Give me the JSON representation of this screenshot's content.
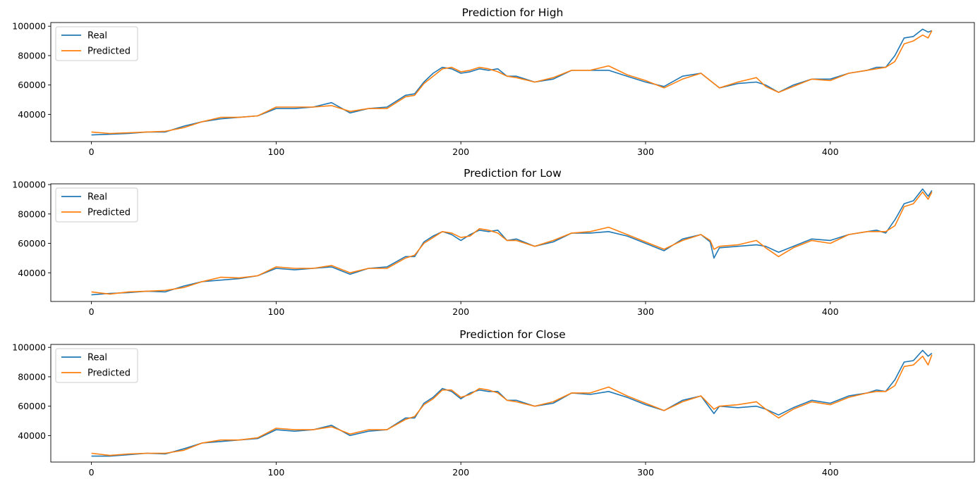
{
  "chart_data": [
    {
      "type": "line",
      "title": "Prediction for High",
      "xlabel": "",
      "ylabel": "",
      "xlim": [
        -22,
        478
      ],
      "ylim": [
        21500,
        102500
      ],
      "xticks": [
        0,
        100,
        200,
        300,
        400
      ],
      "xtick_labels": [
        "0",
        "100",
        "200",
        "300",
        "400"
      ],
      "yticks": [
        40000,
        60000,
        80000,
        100000
      ],
      "ytick_labels": [
        "40000",
        "60000",
        "80000",
        "100000"
      ],
      "legend": {
        "position": "upper-left",
        "entries": [
          "Real",
          "Predicted"
        ]
      },
      "grid": false,
      "series": [
        {
          "name": "Real",
          "color": "#1f77b4",
          "x": [
            0,
            10,
            20,
            30,
            40,
            50,
            60,
            70,
            80,
            90,
            100,
            110,
            120,
            130,
            140,
            150,
            160,
            170,
            175,
            180,
            185,
            190,
            195,
            200,
            205,
            210,
            215,
            220,
            225,
            230,
            240,
            250,
            260,
            270,
            280,
            290,
            300,
            310,
            320,
            330,
            340,
            350,
            360,
            365,
            372,
            380,
            390,
            400,
            410,
            420,
            425,
            430,
            435,
            440,
            445,
            450,
            453,
            455
          ],
          "y": [
            26000,
            26500,
            27000,
            28000,
            28000,
            32000,
            35000,
            37000,
            38000,
            39000,
            44000,
            44000,
            45000,
            48000,
            41000,
            44000,
            45000,
            53000,
            54000,
            62000,
            68000,
            72000,
            71000,
            68000,
            69000,
            71000,
            70000,
            71000,
            66000,
            66000,
            62000,
            64000,
            70000,
            70000,
            70000,
            66000,
            62000,
            59000,
            66000,
            68000,
            58000,
            61000,
            62000,
            60000,
            55000,
            60000,
            64000,
            64000,
            68000,
            70000,
            72000,
            72000,
            80000,
            92000,
            93000,
            98000,
            96000,
            97000
          ]
        },
        {
          "name": "Predicted",
          "color": "#ff7f0e",
          "x": [
            0,
            10,
            20,
            30,
            40,
            50,
            60,
            70,
            80,
            90,
            100,
            110,
            120,
            130,
            140,
            150,
            160,
            170,
            175,
            180,
            185,
            190,
            195,
            200,
            205,
            210,
            215,
            220,
            225,
            230,
            240,
            250,
            260,
            270,
            280,
            290,
            300,
            310,
            320,
            330,
            340,
            350,
            360,
            365,
            372,
            380,
            390,
            400,
            410,
            420,
            425,
            430,
            435,
            440,
            445,
            450,
            453,
            455
          ],
          "y": [
            28000,
            27000,
            27500,
            28000,
            28500,
            31000,
            35000,
            38000,
            38000,
            39000,
            45000,
            45000,
            45000,
            46000,
            42000,
            44000,
            44000,
            52000,
            53000,
            61000,
            66000,
            71000,
            72000,
            69000,
            70000,
            72000,
            71000,
            69000,
            66000,
            65000,
            62000,
            65000,
            70000,
            70000,
            73000,
            67000,
            63000,
            58000,
            64000,
            68000,
            58000,
            62000,
            65000,
            59000,
            55000,
            59000,
            64000,
            63000,
            68000,
            70000,
            71000,
            72000,
            76000,
            88000,
            90000,
            94000,
            92000,
            97000
          ]
        }
      ]
    },
    {
      "type": "line",
      "title": "Prediction for Low",
      "xlabel": "",
      "ylabel": "",
      "xlim": [
        -22,
        478
      ],
      "ylim": [
        20500,
        100500
      ],
      "xticks": [
        0,
        100,
        200,
        300,
        400
      ],
      "xtick_labels": [
        "0",
        "100",
        "200",
        "300",
        "400"
      ],
      "yticks": [
        40000,
        60000,
        80000,
        100000
      ],
      "ytick_labels": [
        "40000",
        "60000",
        "80000",
        "100000"
      ],
      "legend": {
        "position": "upper-left",
        "entries": [
          "Real",
          "Predicted"
        ]
      },
      "grid": false,
      "series": [
        {
          "name": "Real",
          "color": "#1f77b4",
          "x": [
            0,
            10,
            20,
            30,
            40,
            50,
            60,
            70,
            80,
            90,
            100,
            110,
            120,
            130,
            140,
            150,
            160,
            170,
            175,
            180,
            185,
            190,
            195,
            200,
            205,
            210,
            215,
            220,
            225,
            230,
            240,
            250,
            260,
            270,
            280,
            290,
            300,
            310,
            320,
            330,
            335,
            337,
            340,
            350,
            360,
            365,
            372,
            380,
            390,
            400,
            410,
            420,
            425,
            430,
            435,
            440,
            445,
            450,
            453,
            455
          ],
          "y": [
            25000,
            26000,
            26500,
            27500,
            27000,
            31000,
            34000,
            35000,
            36000,
            38000,
            43000,
            42000,
            43000,
            44000,
            39000,
            43000,
            44000,
            51000,
            51000,
            61000,
            65000,
            68000,
            66000,
            62000,
            66000,
            69000,
            68000,
            69000,
            62000,
            63000,
            58000,
            61000,
            67000,
            67000,
            68000,
            65000,
            60000,
            55000,
            63000,
            66000,
            61000,
            50000,
            57000,
            58000,
            59000,
            58000,
            54000,
            58000,
            63000,
            62000,
            66000,
            68000,
            69000,
            67000,
            76000,
            87000,
            89000,
            97000,
            92000,
            96000
          ]
        },
        {
          "name": "Predicted",
          "color": "#ff7f0e",
          "x": [
            0,
            10,
            20,
            30,
            40,
            50,
            60,
            70,
            80,
            90,
            100,
            110,
            120,
            130,
            140,
            150,
            160,
            170,
            175,
            180,
            185,
            190,
            195,
            200,
            205,
            210,
            215,
            220,
            225,
            230,
            240,
            250,
            260,
            270,
            280,
            290,
            300,
            310,
            320,
            330,
            335,
            337,
            340,
            350,
            360,
            365,
            372,
            380,
            390,
            400,
            410,
            420,
            425,
            430,
            435,
            440,
            445,
            450,
            453,
            455
          ],
          "y": [
            27000,
            25500,
            27000,
            27500,
            28000,
            30000,
            34000,
            37000,
            36500,
            38000,
            44000,
            43000,
            43000,
            45000,
            40000,
            43000,
            43000,
            50000,
            52000,
            60000,
            64000,
            68000,
            67000,
            64000,
            65000,
            70000,
            69000,
            67000,
            62000,
            62000,
            58000,
            62000,
            67000,
            68000,
            71000,
            66000,
            61000,
            56000,
            62000,
            66000,
            62000,
            56000,
            58000,
            59000,
            62000,
            57000,
            51000,
            57000,
            62000,
            60000,
            66000,
            68000,
            68000,
            68000,
            72000,
            85000,
            87000,
            95000,
            90000,
            95000
          ]
        }
      ]
    },
    {
      "type": "line",
      "title": "Prediction for Close",
      "xlabel": "",
      "ylabel": "",
      "xlim": [
        -22,
        478
      ],
      "ylim": [
        22000,
        102000
      ],
      "xticks": [
        0,
        100,
        200,
        300,
        400
      ],
      "xtick_labels": [
        "0",
        "100",
        "200",
        "300",
        "400"
      ],
      "yticks": [
        40000,
        60000,
        80000,
        100000
      ],
      "ytick_labels": [
        "40000",
        "60000",
        "80000",
        "100000"
      ],
      "legend": {
        "position": "upper-left",
        "entries": [
          "Real",
          "Predicted"
        ]
      },
      "grid": false,
      "series": [
        {
          "name": "Real",
          "color": "#1f77b4",
          "x": [
            0,
            10,
            20,
            30,
            40,
            50,
            60,
            70,
            80,
            90,
            100,
            110,
            120,
            130,
            140,
            150,
            160,
            170,
            175,
            180,
            185,
            190,
            195,
            200,
            205,
            210,
            215,
            220,
            225,
            230,
            240,
            250,
            260,
            270,
            280,
            290,
            300,
            310,
            320,
            330,
            337,
            340,
            350,
            360,
            365,
            372,
            380,
            390,
            400,
            410,
            420,
            425,
            430,
            435,
            440,
            445,
            450,
            453,
            455
          ],
          "y": [
            26000,
            26000,
            27000,
            28000,
            27500,
            31000,
            35000,
            36000,
            37000,
            38000,
            44000,
            43000,
            44000,
            47000,
            40000,
            43000,
            44000,
            52000,
            52000,
            62000,
            66000,
            72000,
            70000,
            65000,
            69000,
            71000,
            70000,
            70000,
            64000,
            64000,
            60000,
            62000,
            69000,
            68000,
            70000,
            66000,
            61000,
            57000,
            64000,
            67000,
            55000,
            60000,
            59000,
            60000,
            58000,
            54000,
            59000,
            64000,
            62000,
            67000,
            69000,
            71000,
            70000,
            78000,
            90000,
            91000,
            98000,
            94000,
            96000
          ]
        },
        {
          "name": "Predicted",
          "color": "#ff7f0e",
          "x": [
            0,
            10,
            20,
            30,
            40,
            50,
            60,
            70,
            80,
            90,
            100,
            110,
            120,
            130,
            140,
            150,
            160,
            170,
            175,
            180,
            185,
            190,
            195,
            200,
            205,
            210,
            215,
            220,
            225,
            230,
            240,
            250,
            260,
            270,
            280,
            290,
            300,
            310,
            320,
            330,
            337,
            340,
            350,
            360,
            365,
            372,
            380,
            390,
            400,
            410,
            420,
            425,
            430,
            435,
            440,
            445,
            450,
            453,
            455
          ],
          "y": [
            28000,
            26500,
            27500,
            28000,
            28000,
            30000,
            35000,
            37000,
            37000,
            38500,
            45000,
            44000,
            44000,
            46000,
            41000,
            44000,
            44000,
            51000,
            53000,
            61000,
            65000,
            71000,
            71000,
            66000,
            68000,
            72000,
            71000,
            69000,
            64000,
            63000,
            60000,
            63000,
            69000,
            69000,
            73000,
            67000,
            62000,
            57000,
            63000,
            67000,
            58000,
            60000,
            61000,
            63000,
            58000,
            52000,
            58000,
            63000,
            61000,
            66000,
            69000,
            70000,
            70000,
            74000,
            87000,
            88000,
            94000,
            88000,
            95000
          ]
        }
      ]
    }
  ]
}
